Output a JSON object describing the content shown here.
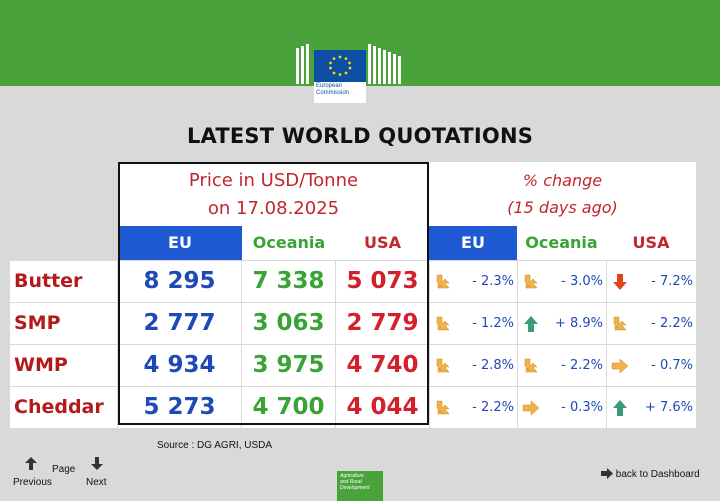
{
  "header": {
    "logo_line1": "European",
    "logo_line2": "Commission"
  },
  "title": "LATEST WORLD QUOTATIONS",
  "price_header": {
    "line1": "Price in USD/Tonne",
    "line2": "on 17.08.2025"
  },
  "change_header": {
    "line1": "% change",
    "line2": "(15 days ago)"
  },
  "columns": {
    "price": [
      "EU",
      "Oceania",
      "USA"
    ],
    "change": [
      "EU",
      "Oceania",
      "USA"
    ]
  },
  "rows": [
    {
      "product": "Butter",
      "prices": [
        "8 295",
        "7 338",
        "5 073"
      ],
      "changes": [
        {
          "value": "- 2.3%",
          "icon": "arrow-down-right-icon"
        },
        {
          "value": "- 3.0%",
          "icon": "arrow-down-right-icon"
        },
        {
          "value": "- 7.2%",
          "icon": "arrow-down-icon"
        }
      ]
    },
    {
      "product": "SMP",
      "prices": [
        "2 777",
        "3 063",
        "2 779"
      ],
      "changes": [
        {
          "value": "- 1.2%",
          "icon": "arrow-down-right-icon"
        },
        {
          "value": "+ 8.9%",
          "icon": "arrow-up-icon"
        },
        {
          "value": "- 2.2%",
          "icon": "arrow-down-right-icon"
        }
      ]
    },
    {
      "product": "WMP",
      "prices": [
        "4 934",
        "3 975",
        "4 740"
      ],
      "changes": [
        {
          "value": "- 2.8%",
          "icon": "arrow-down-right-icon"
        },
        {
          "value": "- 2.2%",
          "icon": "arrow-down-right-icon"
        },
        {
          "value": "- 0.7%",
          "icon": "arrow-right-icon"
        }
      ]
    },
    {
      "product": "Cheddar",
      "prices": [
        "5 273",
        "4 700",
        "4 044"
      ],
      "changes": [
        {
          "value": "- 2.2%",
          "icon": "arrow-down-right-icon"
        },
        {
          "value": "- 0.3%",
          "icon": "arrow-right-icon"
        },
        {
          "value": "+ 7.6%",
          "icon": "arrow-up-icon"
        }
      ]
    }
  ],
  "source": "Source : DG AGRI, USDA",
  "nav": {
    "previous": "Previous",
    "page": "Page",
    "next": "Next",
    "back": "back to Dashboard"
  },
  "footer_logo": [
    "Agriculture",
    "and Rural",
    "Development"
  ],
  "colors": {
    "header_green": "#4aa23b",
    "eu_blue": "#1f59d1",
    "oceania_green": "#3aa335",
    "usa_red": "#c1272d",
    "arrow_orange": "#f0b24a",
    "arrow_red": "#e0451b",
    "arrow_teal": "#3a9a7a"
  }
}
